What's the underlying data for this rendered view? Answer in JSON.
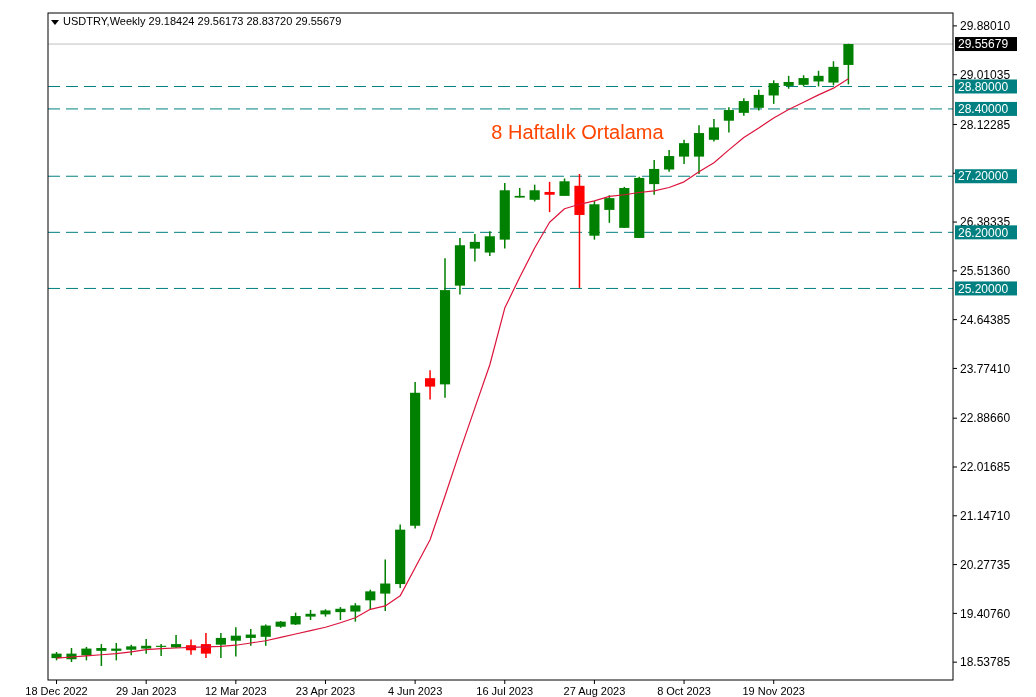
{
  "chart_data": {
    "type": "candlestick",
    "title": "USDTRY,Weekly  29.18424 29.56173 28.83720 29.55679",
    "x": [
      "2022-12-18",
      "2022-12-25",
      "2023-01-01",
      "2023-01-08",
      "2023-01-15",
      "2023-01-22",
      "2023-01-29",
      "2023-02-05",
      "2023-02-12",
      "2023-02-19",
      "2023-02-26",
      "2023-03-05",
      "2023-03-12",
      "2023-03-19",
      "2023-03-26",
      "2023-04-02",
      "2023-04-09",
      "2023-04-16",
      "2023-04-23",
      "2023-04-30",
      "2023-05-07",
      "2023-05-14",
      "2023-05-21",
      "2023-05-28",
      "2023-06-04",
      "2023-06-11",
      "2023-06-18",
      "2023-06-25",
      "2023-07-02",
      "2023-07-09",
      "2023-07-16",
      "2023-07-23",
      "2023-07-30",
      "2023-08-06",
      "2023-08-13",
      "2023-08-20",
      "2023-08-27",
      "2023-09-03",
      "2023-09-10",
      "2023-09-17",
      "2023-09-24",
      "2023-10-01",
      "2023-10-08",
      "2023-10-15",
      "2023-10-22",
      "2023-10-29",
      "2023-11-05",
      "2023-11-12",
      "2023-11-19",
      "2023-11-26",
      "2023-12-03",
      "2023-12-10",
      "2023-12-17",
      "2023-12-24"
    ],
    "ohlc": [
      [
        18.61,
        18.72,
        18.57,
        18.69
      ],
      [
        18.59,
        18.79,
        18.54,
        18.69
      ],
      [
        18.66,
        18.81,
        18.57,
        18.78
      ],
      [
        18.74,
        18.86,
        18.47,
        18.79
      ],
      [
        18.74,
        18.88,
        18.57,
        18.78
      ],
      [
        18.76,
        18.85,
        18.66,
        18.82
      ],
      [
        18.78,
        18.95,
        18.69,
        18.83
      ],
      [
        18.81,
        18.86,
        18.65,
        18.83
      ],
      [
        18.8,
        19.02,
        18.79,
        18.86
      ],
      [
        18.84,
        18.94,
        18.67,
        18.75
      ],
      [
        18.86,
        19.06,
        18.61,
        18.69
      ],
      [
        18.85,
        19.06,
        18.61,
        18.97
      ],
      [
        18.92,
        19.16,
        18.64,
        19.01
      ],
      [
        18.97,
        19.13,
        18.83,
        19.03
      ],
      [
        18.99,
        19.21,
        18.83,
        19.19
      ],
      [
        19.17,
        19.27,
        19.15,
        19.26
      ],
      [
        19.21,
        19.42,
        19.2,
        19.36
      ],
      [
        19.35,
        19.47,
        19.29,
        19.4
      ],
      [
        19.39,
        19.48,
        19.35,
        19.46
      ],
      [
        19.43,
        19.52,
        19.29,
        19.49
      ],
      [
        19.44,
        19.59,
        19.26,
        19.55
      ],
      [
        19.64,
        19.83,
        19.47,
        19.8
      ],
      [
        19.76,
        20.37,
        19.45,
        19.94
      ],
      [
        19.93,
        20.99,
        19.86,
        20.9
      ],
      [
        20.97,
        23.53,
        20.92,
        23.34
      ],
      [
        23.6,
        23.74,
        23.22,
        23.45
      ],
      [
        23.49,
        25.74,
        23.25,
        25.17
      ],
      [
        25.25,
        26.1,
        25.09,
        25.97
      ],
      [
        25.91,
        26.17,
        25.68,
        26.03
      ],
      [
        25.84,
        26.22,
        25.78,
        26.13
      ],
      [
        26.07,
        27.08,
        25.91,
        26.95
      ],
      [
        26.82,
        26.99,
        26.82,
        26.85
      ],
      [
        26.78,
        27.05,
        26.75,
        26.95
      ],
      [
        26.92,
        27.1,
        26.56,
        26.87
      ],
      [
        26.85,
        27.16,
        26.85,
        27.11
      ],
      [
        27.03,
        27.24,
        25.21,
        26.51
      ],
      [
        26.14,
        26.76,
        26.07,
        26.7
      ],
      [
        26.6,
        26.86,
        26.37,
        26.81
      ],
      [
        26.28,
        27.01,
        26.28,
        26.99
      ],
      [
        26.1,
        27.19,
        26.1,
        27.17
      ],
      [
        27.06,
        27.49,
        26.87,
        27.33
      ],
      [
        27.32,
        27.67,
        27.28,
        27.56
      ],
      [
        27.55,
        27.85,
        27.42,
        27.79
      ],
      [
        27.55,
        28.11,
        27.24,
        27.97
      ],
      [
        27.85,
        28.22,
        27.82,
        28.07
      ],
      [
        28.19,
        28.43,
        27.98,
        28.38
      ],
      [
        28.33,
        28.59,
        28.28,
        28.54
      ],
      [
        28.42,
        28.74,
        28.37,
        28.65
      ],
      [
        28.64,
        28.91,
        28.49,
        28.86
      ],
      [
        28.81,
        28.99,
        28.76,
        28.88
      ],
      [
        28.83,
        29.0,
        28.8,
        28.95
      ],
      [
        28.89,
        29.08,
        28.8,
        28.99
      ],
      [
        28.87,
        29.25,
        28.82,
        29.15
      ],
      [
        29.18424,
        29.56173,
        28.8372,
        29.55679
      ]
    ],
    "colors": [
      "#008000",
      "#008000",
      "#008000",
      "#008000",
      "#008000",
      "#008000",
      "#008000",
      "#008000",
      "#008000",
      "#ff0000",
      "#ff0000",
      "#008000",
      "#008000",
      "#008000",
      "#008000",
      "#008000",
      "#008000",
      "#008000",
      "#008000",
      "#008000",
      "#008000",
      "#008000",
      "#008000",
      "#008000",
      "#008000",
      "#ff0000",
      "#008000",
      "#008000",
      "#008000",
      "#008000",
      "#008000",
      "#008000",
      "#008000",
      "#ff0000",
      "#008000",
      "#ff0000",
      "#008000",
      "#008000",
      "#008000",
      "#008000",
      "#008000",
      "#008000",
      "#008000",
      "#008000",
      "#008000",
      "#008000",
      "#008000",
      "#008000",
      "#008000",
      "#008000",
      "#008000",
      "#008000",
      "#008000",
      "#008000"
    ],
    "series": [
      {
        "type": "line",
        "color": "#dc143c",
        "values": [
          18.61,
          18.63,
          18.65,
          18.67,
          18.69,
          18.72,
          18.76,
          18.78,
          18.79,
          18.8,
          18.81,
          18.82,
          18.84,
          18.88,
          18.92,
          18.98,
          19.04,
          19.1,
          19.16,
          19.24,
          19.33,
          19.48,
          19.54,
          19.72,
          20.22,
          20.72,
          21.5,
          22.3,
          23.07,
          23.84,
          24.85,
          25.4,
          25.92,
          26.38,
          26.62,
          26.7,
          26.76,
          26.84,
          26.87,
          26.91,
          26.94,
          27.0,
          27.1,
          27.28,
          27.44,
          27.67,
          27.89,
          28.06,
          28.24,
          28.39,
          28.52,
          28.65,
          28.77,
          28.94
        ]
      }
    ],
    "annotations": [
      "8 Haftalık Ortalama"
    ],
    "ref_lines": [
      {
        "axis": "y",
        "value": 29.55679,
        "label": "29.55679",
        "color": "#c0c0c0",
        "line_style": "solid"
      },
      {
        "axis": "y",
        "value": 28.8,
        "label": "28.80000",
        "color": "#008080",
        "line_style": "dashed"
      },
      {
        "axis": "y",
        "value": 28.4,
        "label": "28.40000",
        "color": "#008080",
        "line_style": "dashed"
      },
      {
        "axis": "y",
        "value": 27.2,
        "label": "27.20000",
        "color": "#008080",
        "line_style": "dashed"
      },
      {
        "axis": "y",
        "value": 26.2,
        "label": "26.20000",
        "color": "#008080",
        "line_style": "dashed"
      },
      {
        "axis": "y",
        "value": 25.2,
        "label": "25.20000",
        "color": "#008080",
        "line_style": "dashed"
      }
    ],
    "xlim": [
      "2022-12-14",
      "2024-02-11"
    ],
    "xticks": [
      {
        "value": "2022-12-18",
        "label": "18 Dec 2022"
      },
      {
        "value": "2023-01-29",
        "label": "29 Jan 2023"
      },
      {
        "value": "2023-03-12",
        "label": "12 Mar 2023"
      },
      {
        "value": "2023-04-23",
        "label": "23 Apr 2023"
      },
      {
        "value": "2023-06-04",
        "label": "4 Jun 2023"
      },
      {
        "value": "2023-07-16",
        "label": "16 Jul 2023"
      },
      {
        "value": "2023-08-27",
        "label": "27 Aug 2023"
      },
      {
        "value": "2023-10-08",
        "label": "8 Oct 2023"
      },
      {
        "value": "2023-11-19",
        "label": "19 Nov 2023"
      }
    ],
    "ylim": [
      18.22,
      30.11
    ],
    "yticks": [
      {
        "value": 29.8801,
        "label": "29.88010"
      },
      {
        "value": 29.01035,
        "label": "29.01035"
      },
      {
        "value": 28.12285,
        "label": "28.12285"
      },
      {
        "value": 27.2531,
        "label": null
      },
      {
        "value": 26.38335,
        "label": "26.38335"
      },
      {
        "value": 25.5136,
        "label": "25.51360"
      },
      {
        "value": 24.64385,
        "label": "24.64385"
      },
      {
        "value": 23.7741,
        "label": "23.77410"
      },
      {
        "value": 22.8866,
        "label": "22.88660"
      },
      {
        "value": 22.01685,
        "label": "22.01685"
      },
      {
        "value": 21.1471,
        "label": "21.14710"
      },
      {
        "value": 20.27735,
        "label": "20.27735"
      },
      {
        "value": 19.4076,
        "label": "19.40760"
      },
      {
        "value": 18.53785,
        "label": "18.53785"
      }
    ]
  }
}
